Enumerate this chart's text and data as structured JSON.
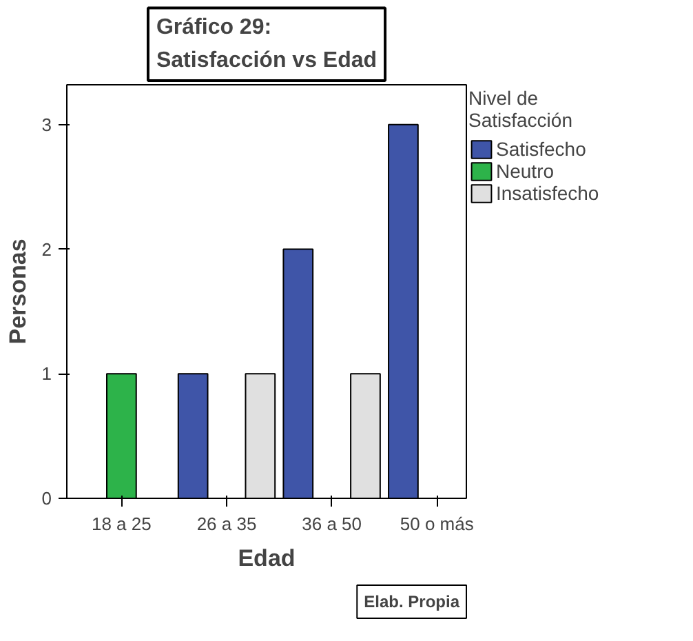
{
  "chart_data": {
    "type": "bar",
    "title": "Gráfico 29:\nSatisfacción vs Edad",
    "xlabel": "Edad",
    "ylabel": "Personas",
    "legend_title": "Nivel de\nSatisfacción",
    "categories": [
      "18 a 25",
      "26 a 35",
      "36 a 50",
      "50 o más"
    ],
    "series": [
      {
        "name": "Satisfecho",
        "color": "#3f55a8",
        "values": [
          null,
          1,
          2,
          3
        ]
      },
      {
        "name": "Neutro",
        "color": "#2db34a",
        "values": [
          1,
          null,
          null,
          null
        ]
      },
      {
        "name": "Insatisfecho",
        "color": "#e0e0e0",
        "values": [
          null,
          1,
          1,
          null
        ]
      }
    ],
    "ylim": [
      0,
      3.32
    ],
    "yticks": [
      0,
      1,
      2,
      3
    ],
    "grid": false,
    "legend": "right",
    "annotations": [
      "Elab. Propia"
    ]
  }
}
